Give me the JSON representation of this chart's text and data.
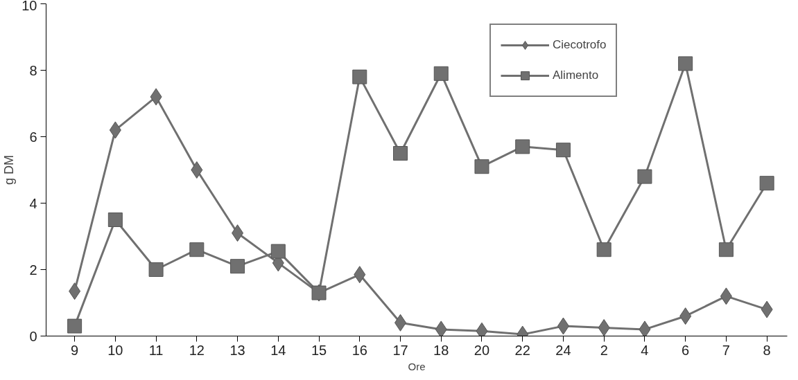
{
  "chart_data": {
    "type": "line",
    "xlabel": "Ore",
    "ylabel": "g DM",
    "categories": [
      "9",
      "10",
      "11",
      "12",
      "13",
      "14",
      "15",
      "16",
      "17",
      "18",
      "20",
      "22",
      "24",
      "2",
      "4",
      "6",
      "7",
      "8"
    ],
    "series": [
      {
        "name": "Ciecotrofo",
        "color": "#707070",
        "marker": "diamond",
        "values": [
          1.35,
          6.2,
          7.2,
          5.0,
          3.1,
          2.2,
          1.3,
          1.85,
          0.4,
          0.2,
          0.15,
          0.05,
          0.3,
          0.25,
          0.2,
          0.6,
          1.2,
          0.8
        ]
      },
      {
        "name": "Alimento",
        "color": "#707070",
        "marker": "square",
        "values": [
          0.3,
          3.5,
          2.0,
          2.6,
          2.1,
          2.55,
          1.3,
          7.8,
          5.5,
          7.9,
          5.1,
          5.7,
          5.6,
          2.6,
          4.8,
          8.2,
          2.6,
          4.6
        ]
      }
    ],
    "ylim": [
      0,
      10
    ],
    "yticks": [
      0,
      2,
      4,
      6,
      8,
      10
    ],
    "grid": false,
    "legend": "top right",
    "line_style": "solid"
  }
}
